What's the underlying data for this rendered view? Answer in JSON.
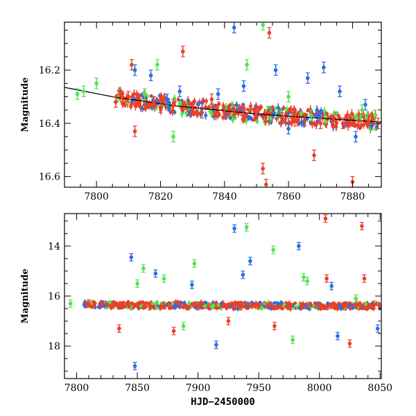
{
  "chart_data": [
    {
      "type": "scatter",
      "title": "",
      "xlabel": "",
      "ylabel": "Magnitude",
      "xlim": [
        7790,
        7889
      ],
      "ylim": [
        16.64,
        16.02
      ],
      "y_inverted": true,
      "xticks": [
        7800,
        7820,
        7840,
        7860,
        7880
      ],
      "yticks": [
        16.2,
        16.4,
        16.6
      ],
      "grid": false,
      "series": [
        {
          "color": "#e8402a",
          "marker": "circle-errorbar",
          "points": [
            {
              "x": 7806,
              "y": 16.32
            },
            {
              "x": 7808,
              "y": 16.3
            },
            {
              "x": 7810,
              "y": 16.3
            },
            {
              "x": 7811,
              "y": 16.18
            },
            {
              "x": 7812,
              "y": 16.43
            },
            {
              "x": 7815,
              "y": 16.33
            },
            {
              "x": 7818,
              "y": 16.32
            },
            {
              "x": 7820,
              "y": 16.34
            },
            {
              "x": 7824,
              "y": 16.33
            },
            {
              "x": 7827,
              "y": 16.13
            },
            {
              "x": 7830,
              "y": 16.35
            },
            {
              "x": 7833,
              "y": 16.36
            },
            {
              "x": 7836,
              "y": 16.31
            },
            {
              "x": 7840,
              "y": 16.36
            },
            {
              "x": 7843,
              "y": 16.35
            },
            {
              "x": 7846,
              "y": 16.37
            },
            {
              "x": 7850,
              "y": 16.36
            },
            {
              "x": 7852,
              "y": 16.57
            },
            {
              "x": 7853,
              "y": 16.63
            },
            {
              "x": 7854,
              "y": 16.06
            },
            {
              "x": 7858,
              "y": 16.38
            },
            {
              "x": 7860,
              "y": 16.4
            },
            {
              "x": 7862,
              "y": 16.39
            },
            {
              "x": 7865,
              "y": 16.39
            },
            {
              "x": 7868,
              "y": 16.52
            },
            {
              "x": 7870,
              "y": 16.4
            },
            {
              "x": 7874,
              "y": 16.39
            },
            {
              "x": 7877,
              "y": 16.4
            },
            {
              "x": 7880,
              "y": 16.62
            },
            {
              "x": 7882,
              "y": 16.39
            },
            {
              "x": 7885,
              "y": 16.39
            },
            {
              "x": 7888,
              "y": 16.4
            }
          ]
        },
        {
          "color": "#2b6ee6",
          "marker": "circle-errorbar",
          "points": [
            {
              "x": 7812,
              "y": 16.2
            },
            {
              "x": 7817,
              "y": 16.22
            },
            {
              "x": 7822,
              "y": 16.31
            },
            {
              "x": 7826,
              "y": 16.28
            },
            {
              "x": 7838,
              "y": 16.29
            },
            {
              "x": 7843,
              "y": 16.04
            },
            {
              "x": 7846,
              "y": 16.26
            },
            {
              "x": 7856,
              "y": 16.2
            },
            {
              "x": 7860,
              "y": 16.42
            },
            {
              "x": 7866,
              "y": 16.23
            },
            {
              "x": 7871,
              "y": 16.19
            },
            {
              "x": 7876,
              "y": 16.28
            },
            {
              "x": 7881,
              "y": 16.45
            },
            {
              "x": 7884,
              "y": 16.33
            }
          ]
        },
        {
          "color": "#4ee64e",
          "marker": "circle-errorbar",
          "points": [
            {
              "x": 7794,
              "y": 16.29
            },
            {
              "x": 7796,
              "y": 16.28
            },
            {
              "x": 7800,
              "y": 16.25
            },
            {
              "x": 7815,
              "y": 16.29
            },
            {
              "x": 7819,
              "y": 16.18
            },
            {
              "x": 7824,
              "y": 16.45
            },
            {
              "x": 7847,
              "y": 16.18
            },
            {
              "x": 7852,
              "y": 16.03
            },
            {
              "x": 7860,
              "y": 16.3
            },
            {
              "x": 7867,
              "y": 16.37
            },
            {
              "x": 7883,
              "y": 16.35
            },
            {
              "x": 7887,
              "y": 16.37
            }
          ]
        }
      ],
      "trend": {
        "color": "#000000",
        "points": [
          {
            "x": 7790,
            "y": 16.265
          },
          {
            "x": 7805,
            "y": 16.3
          },
          {
            "x": 7825,
            "y": 16.335
          },
          {
            "x": 7850,
            "y": 16.365
          },
          {
            "x": 7875,
            "y": 16.385
          },
          {
            "x": 7889,
            "y": 16.395
          }
        ]
      }
    },
    {
      "type": "scatter",
      "title": "",
      "xlabel": "HJD−2450000",
      "ylabel": "Magnitude",
      "xlim": [
        7790,
        8051
      ],
      "ylim": [
        19.3,
        12.7
      ],
      "y_inverted": true,
      "xticks": [
        7800,
        7850,
        7900,
        7950,
        8000,
        8050
      ],
      "yticks": [
        14,
        16,
        18
      ],
      "grid": false,
      "series": [
        {
          "color": "#e8402a",
          "marker": "circle-errorbar",
          "points": [
            {
              "x": 7810,
              "y": 16.3
            },
            {
              "x": 7830,
              "y": 16.35
            },
            {
              "x": 7835,
              "y": 17.3
            },
            {
              "x": 7860,
              "y": 16.4
            },
            {
              "x": 7880,
              "y": 17.4
            },
            {
              "x": 7900,
              "y": 16.4
            },
            {
              "x": 7925,
              "y": 17.0
            },
            {
              "x": 7935,
              "y": 16.4
            },
            {
              "x": 7963,
              "y": 17.2
            },
            {
              "x": 7975,
              "y": 16.4
            },
            {
              "x": 8000,
              "y": 16.4
            },
            {
              "x": 8005,
              "y": 12.9
            },
            {
              "x": 8006,
              "y": 15.3
            },
            {
              "x": 8020,
              "y": 16.4
            },
            {
              "x": 8025,
              "y": 17.9
            },
            {
              "x": 8035,
              "y": 13.2
            },
            {
              "x": 8037,
              "y": 15.3
            },
            {
              "x": 8045,
              "y": 16.35
            }
          ]
        },
        {
          "color": "#2b6ee6",
          "marker": "circle-errorbar",
          "points": [
            {
              "x": 7845,
              "y": 14.45
            },
            {
              "x": 7848,
              "y": 18.8
            },
            {
              "x": 7865,
              "y": 15.1
            },
            {
              "x": 7895,
              "y": 15.55
            },
            {
              "x": 7915,
              "y": 17.95
            },
            {
              "x": 7930,
              "y": 13.3
            },
            {
              "x": 7937,
              "y": 15.15
            },
            {
              "x": 7943,
              "y": 14.6
            },
            {
              "x": 7983,
              "y": 14.0
            },
            {
              "x": 8010,
              "y": 15.6
            },
            {
              "x": 8015,
              "y": 17.6
            },
            {
              "x": 8048,
              "y": 17.3
            }
          ]
        },
        {
          "color": "#4ee64e",
          "marker": "circle-errorbar",
          "points": [
            {
              "x": 7795,
              "y": 16.3
            },
            {
              "x": 7850,
              "y": 15.5
            },
            {
              "x": 7855,
              "y": 14.9
            },
            {
              "x": 7872,
              "y": 15.3
            },
            {
              "x": 7888,
              "y": 17.2
            },
            {
              "x": 7897,
              "y": 14.7
            },
            {
              "x": 7940,
              "y": 13.25
            },
            {
              "x": 7962,
              "y": 14.15
            },
            {
              "x": 7978,
              "y": 17.75
            },
            {
              "x": 7987,
              "y": 15.25
            },
            {
              "x": 7990,
              "y": 15.4
            },
            {
              "x": 8030,
              "y": 16.1
            }
          ]
        }
      ]
    }
  ]
}
